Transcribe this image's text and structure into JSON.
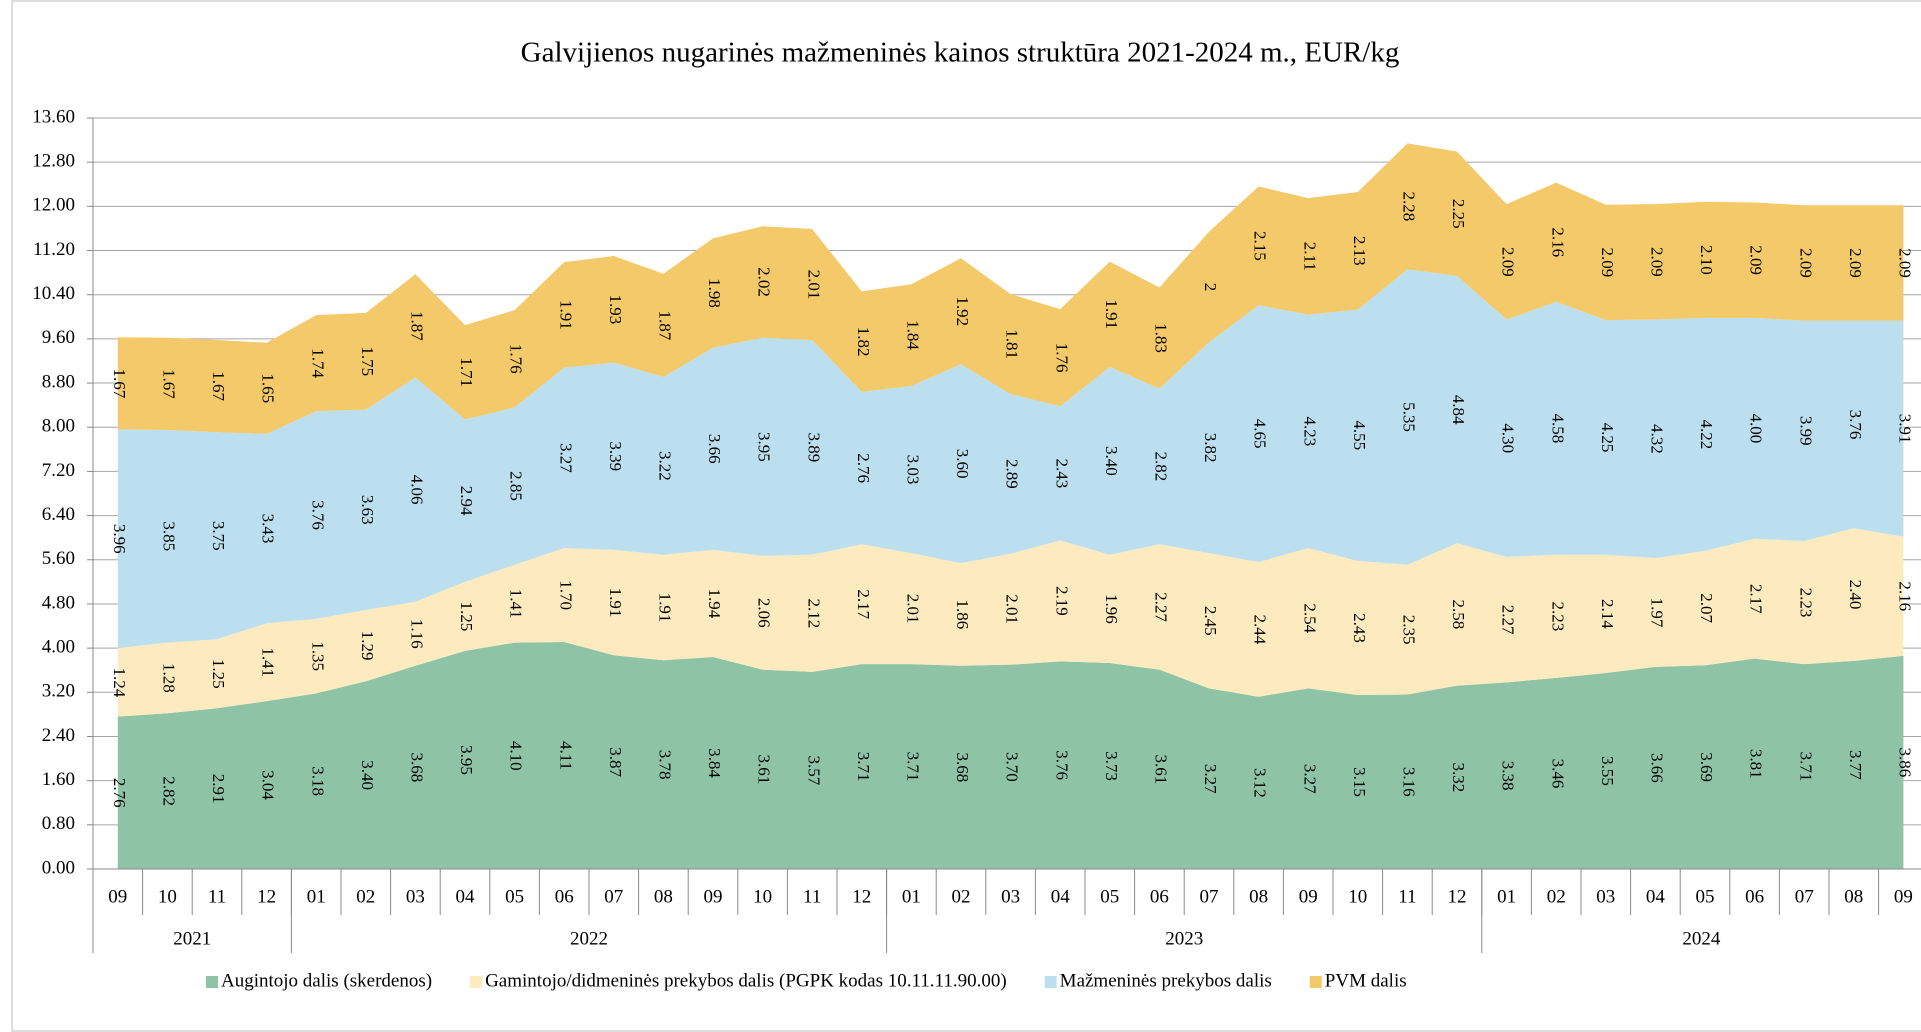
{
  "chart_data": {
    "type": "stacked_area",
    "title": "Galvijienos nugarinės mažmeninės kainos struktūra 2021-2024 m., EUR/kg",
    "categories": [
      "09",
      "10",
      "11",
      "12",
      "01",
      "02",
      "03",
      "04",
      "05",
      "06",
      "07",
      "08",
      "09",
      "10",
      "11",
      "12",
      "01",
      "02",
      "03",
      "04",
      "05",
      "06",
      "07",
      "08",
      "09",
      "10",
      "11",
      "12",
      "01",
      "02",
      "03",
      "04",
      "05",
      "06",
      "07",
      "08",
      "09"
    ],
    "groups": [
      {
        "label": "2021",
        "span": 4
      },
      {
        "label": "2022",
        "span": 12
      },
      {
        "label": "2023",
        "span": 12
      },
      {
        "label": "2024",
        "span": 9
      }
    ],
    "ylim": [
      0,
      13.6
    ],
    "yticks": [
      {
        "value": 0,
        "label": "0.00"
      },
      {
        "value": 0.8,
        "label": "0.80"
      },
      {
        "value": 1.6,
        "label": "1.60"
      },
      {
        "value": 2.4,
        "label": "2.40"
      },
      {
        "value": 3.2,
        "label": "3.20"
      },
      {
        "value": 4,
        "label": "4.00"
      },
      {
        "value": 4.8,
        "label": "4.80"
      },
      {
        "value": 5.6,
        "label": "5.60"
      },
      {
        "value": 6.4,
        "label": "6.40"
      },
      {
        "value": 7.2,
        "label": "7.20"
      },
      {
        "value": 8,
        "label": "8.00"
      },
      {
        "value": 8.8,
        "label": "8.80"
      },
      {
        "value": 9.6,
        "label": "9.60"
      },
      {
        "value": 10.4,
        "label": "10.40"
      },
      {
        "value": 11.2,
        "label": "11.20"
      },
      {
        "value": 12,
        "label": "12.00"
      },
      {
        "value": 12.8,
        "label": "12.80"
      },
      {
        "value": 13.6,
        "label": "13.60"
      }
    ],
    "grid": true,
    "legend": "bottom",
    "series": [
      {
        "name": "Augintojo dalis (skerdenos)",
        "color": "#8fc3a6",
        "values": [
          2.76,
          2.82,
          2.91,
          3.04,
          3.18,
          3.4,
          3.68,
          3.95,
          4.1,
          4.11,
          3.87,
          3.78,
          3.84,
          3.61,
          3.57,
          3.71,
          3.71,
          3.68,
          3.7,
          3.76,
          3.73,
          3.61,
          3.27,
          3.12,
          3.27,
          3.15,
          3.16,
          3.32,
          3.38,
          3.46,
          3.55,
          3.66,
          3.69,
          3.81,
          3.71,
          3.77,
          3.86
        ],
        "value_labels": [
          "2.76",
          "2.82",
          "2.91",
          "3.04",
          "3.18",
          "3.40",
          "3.68",
          "3.95",
          "4.10",
          "4.11",
          "3.87",
          "3.78",
          "3.84",
          "3.61",
          "3.57",
          "3.71",
          "3.71",
          "3.68",
          "3.70",
          "3.76",
          "3.73",
          "3.61",
          "3.27",
          "3.12",
          "3.27",
          "3.15",
          "3.16",
          "3.32",
          "3.38",
          "3.46",
          "3.55",
          "3.66",
          "3.69",
          "3.81",
          "3.71",
          "3.77",
          "3.86"
        ]
      },
      {
        "name": "Gamintojo/didmeninės prekybos dalis (PGPK kodas 10.11.11.90.00)",
        "color": "#fdebbf",
        "values": [
          1.24,
          1.28,
          1.25,
          1.41,
          1.35,
          1.29,
          1.16,
          1.25,
          1.41,
          1.7,
          1.91,
          1.91,
          1.94,
          2.06,
          2.12,
          2.17,
          2.01,
          1.86,
          2.01,
          2.19,
          1.96,
          2.27,
          2.45,
          2.44,
          2.54,
          2.43,
          2.35,
          2.58,
          2.27,
          2.23,
          2.14,
          1.97,
          2.07,
          2.17,
          2.23,
          2.4,
          2.16
        ],
        "value_labels": [
          "1.24",
          "1.28",
          "1.25",
          "1.41",
          "1.35",
          "1.29",
          "1.16",
          "1.25",
          "1.41",
          "1.70",
          "1.91",
          "1.91",
          "1.94",
          "2.06",
          "2.12",
          "2.17",
          "2.01",
          "1.86",
          "2.01",
          "2.19",
          "1.96",
          "2.27",
          "2.45",
          "2.44",
          "2.54",
          "2.43",
          "2.35",
          "2.58",
          "2.27",
          "2.23",
          "2.14",
          "1.97",
          "2.07",
          "2.17",
          "2.23",
          "2.40",
          "2.16"
        ]
      },
      {
        "name": "Mažmeninės prekybos dalis",
        "color": "#bcdff0",
        "values": [
          3.96,
          3.85,
          3.75,
          3.43,
          3.76,
          3.63,
          4.06,
          2.94,
          2.85,
          3.27,
          3.39,
          3.22,
          3.66,
          3.95,
          3.89,
          2.76,
          3.03,
          3.6,
          2.89,
          2.43,
          3.4,
          2.82,
          3.82,
          4.65,
          4.23,
          4.55,
          5.35,
          4.84,
          4.3,
          4.58,
          4.25,
          4.32,
          4.22,
          4.0,
          3.99,
          3.76,
          3.91
        ],
        "value_labels": [
          "3.96",
          "3.85",
          "3.75",
          "3.43",
          "3.76",
          "3.63",
          "4.06",
          "2.94",
          "2.85",
          "3.27",
          "3.39",
          "3.22",
          "3.66",
          "3.95",
          "3.89",
          "2.76",
          "3.03",
          "3.60",
          "2.89",
          "2.43",
          "3.40",
          "2.82",
          "3.82",
          "4.65",
          "4.23",
          "4.55",
          "5.35",
          "4.84",
          "4.30",
          "4.58",
          "4.25",
          "4.32",
          "4.22",
          "4.00",
          "3.99",
          "3.76",
          "3.91"
        ]
      },
      {
        "name": "PVM dalis",
        "color": "#f3c96a",
        "values": [
          1.67,
          1.67,
          1.67,
          1.65,
          1.74,
          1.75,
          1.87,
          1.71,
          1.76,
          1.91,
          1.93,
          1.87,
          1.98,
          2.02,
          2.01,
          1.82,
          1.84,
          1.92,
          1.81,
          1.76,
          1.91,
          1.83,
          2,
          2.15,
          2.11,
          2.13,
          2.28,
          2.25,
          2.09,
          2.16,
          2.09,
          2.09,
          2.1,
          2.09,
          2.09,
          2.09,
          2.09
        ],
        "value_labels": [
          "1.67",
          "1.67",
          "1.67",
          "1.65",
          "1.74",
          "1.75",
          "1.87",
          "1.71",
          "1.76",
          "1.91",
          "1.93",
          "1.87",
          "1.98",
          "2.02",
          "2.01",
          "1.82",
          "1.84",
          "1.92",
          "1.81",
          "1.76",
          "1.91",
          "1.83",
          "2",
          "2.15",
          "2.11",
          "2.13",
          "2.28",
          "2.25",
          "2.09",
          "2.16",
          "2.09",
          "2.09",
          "2.10",
          "2.09",
          "2.09",
          "2.09",
          "2.09"
        ]
      }
    ]
  }
}
